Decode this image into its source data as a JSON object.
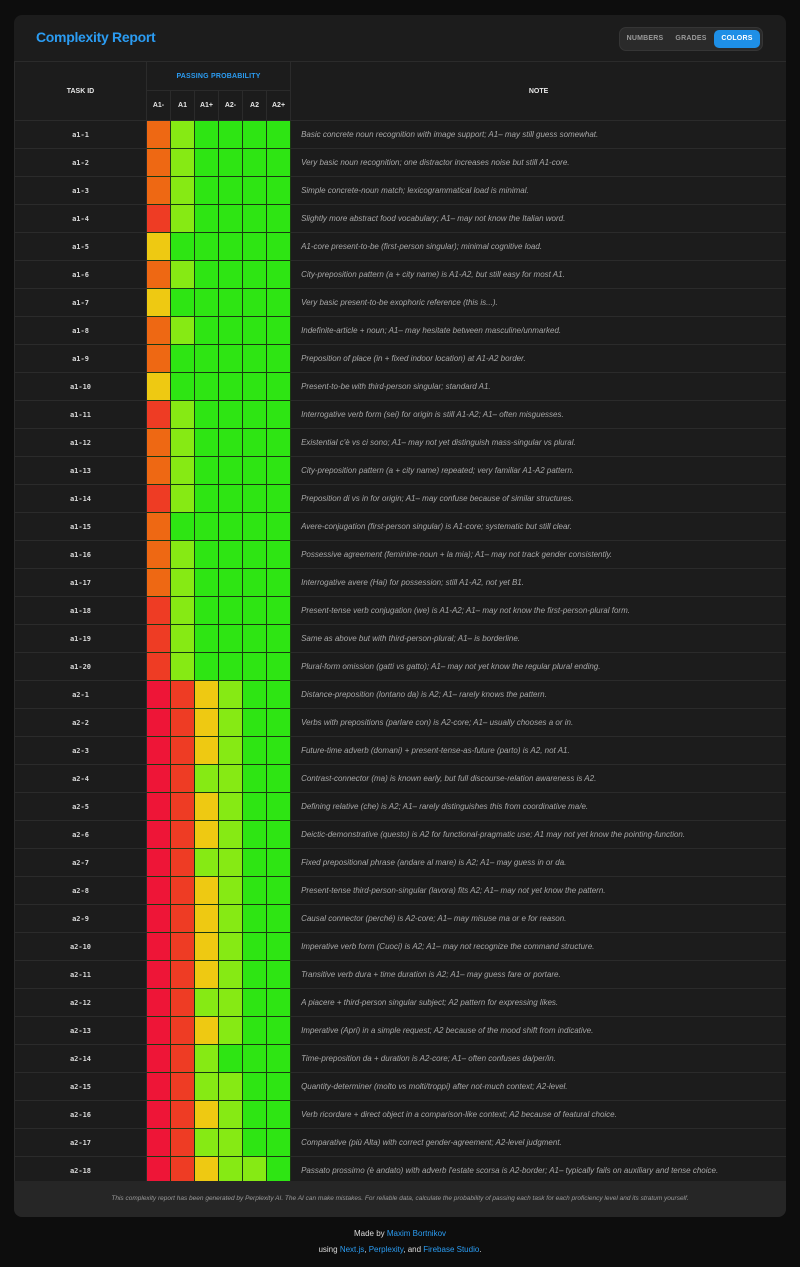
{
  "header": {
    "title": "Complexity Report",
    "view_options": [
      "NUMBERS",
      "GRADES",
      "COLORS"
    ],
    "active_view": "COLORS"
  },
  "table": {
    "task_id_header": "TASK ID",
    "group_header": "PASSING PROBABILITY",
    "levels": [
      "A1-",
      "A1",
      "A1+",
      "A2-",
      "A2",
      "A2+"
    ],
    "note_header": "NOTE"
  },
  "palette": {
    "G": "#2ee513",
    "L": "#86ea14",
    "Y": "#eec912",
    "O": "#ee6813",
    "R": "#ee3c24",
    "P": "#ee1537"
  },
  "rows": [
    {
      "id": "a1-1",
      "colors": "OLGGGG",
      "note": "Basic concrete noun recognition with image support; A1– may still guess somewhat."
    },
    {
      "id": "a1-2",
      "colors": "OLGGGG",
      "note": "Very basic noun recognition; one distractor increases noise but still A1-core."
    },
    {
      "id": "a1-3",
      "colors": "OLGGGG",
      "note": "Simple concrete-noun match; lexicogrammatical load is minimal."
    },
    {
      "id": "a1-4",
      "colors": "RLGGGG",
      "note": "Slightly more abstract food vocabulary; A1– may not know the Italian word."
    },
    {
      "id": "a1-5",
      "colors": "YGGGGG",
      "note": "A1-core present-to-be (first-person singular); minimal cognitive load."
    },
    {
      "id": "a1-6",
      "colors": "OLGGGG",
      "note": "City-preposition pattern (a + city name) is A1-A2, but still easy for most A1."
    },
    {
      "id": "a1-7",
      "colors": "YGGGGG",
      "note": "Very basic present-to-be exophoric reference (this is...)."
    },
    {
      "id": "a1-8",
      "colors": "OLGGGG",
      "note": "Indefinite-article + noun; A1– may hesitate between masculine/unmarked."
    },
    {
      "id": "a1-9",
      "colors": "OGGGGG",
      "note": "Preposition of place (in + fixed indoor location) at A1-A2 border."
    },
    {
      "id": "a1-10",
      "colors": "YGGGGG",
      "note": "Present-to-be with third-person singular; standard A1."
    },
    {
      "id": "a1-11",
      "colors": "RLGGGG",
      "note": "Interrogative verb form (sei) for origin is still A1-A2; A1– often misguesses."
    },
    {
      "id": "a1-12",
      "colors": "OLGGGG",
      "note": "Existential c'è vs ci sono; A1– may not yet distinguish mass-singular vs plural."
    },
    {
      "id": "a1-13",
      "colors": "OLGGGG",
      "note": "City-preposition pattern (a + city name) repeated; very familiar A1-A2 pattern."
    },
    {
      "id": "a1-14",
      "colors": "RLGGGG",
      "note": "Preposition di vs in for origin; A1– may confuse because of similar structures."
    },
    {
      "id": "a1-15",
      "colors": "OGGGGG",
      "note": "Avere-conjugation (first-person singular) is A1-core; systematic but still clear."
    },
    {
      "id": "a1-16",
      "colors": "OLGGGG",
      "note": "Possessive agreement (feminine-noun + la mia); A1– may not track gender consistently."
    },
    {
      "id": "a1-17",
      "colors": "OLGGGG",
      "note": "Interrogative avere (Hai) for possession; still A1-A2, not yet B1."
    },
    {
      "id": "a1-18",
      "colors": "RLGGGG",
      "note": "Present-tense verb conjugation (we) is A1-A2; A1– may not know the first-person-plural form."
    },
    {
      "id": "a1-19",
      "colors": "RLGGGG",
      "note": "Same as above but with third-person-plural; A1– is borderline."
    },
    {
      "id": "a1-20",
      "colors": "RLGGGG",
      "note": "Plural-form omission (gatti vs gatto); A1– may not yet know the regular plural ending."
    },
    {
      "id": "a2-1",
      "colors": "PRYLGG",
      "note": "Distance-preposition (lontano da) is A2; A1– rarely knows the pattern."
    },
    {
      "id": "a2-2",
      "colors": "PRYLGG",
      "note": "Verbs with prepositions (parlare con) is A2-core; A1– usually chooses a or in."
    },
    {
      "id": "a2-3",
      "colors": "PRYLGG",
      "note": "Future-time adverb (domani) + present-tense-as-future (parto) is A2, not A1."
    },
    {
      "id": "a2-4",
      "colors": "PRLLGG",
      "note": "Contrast-connector (ma) is known early, but full discourse-relation awareness is A2."
    },
    {
      "id": "a2-5",
      "colors": "PRYLGG",
      "note": "Defining relative (che) is A2; A1– rarely distinguishes this from coordinative ma/e."
    },
    {
      "id": "a2-6",
      "colors": "PRYLGG",
      "note": "Deictic-demonstrative (questo) is A2 for functional-pragmatic use; A1 may not yet know the pointing-function."
    },
    {
      "id": "a2-7",
      "colors": "PRLLGG",
      "note": "Fixed prepositional phrase (andare al mare) is A2; A1– may guess in or da."
    },
    {
      "id": "a2-8",
      "colors": "PRYLGG",
      "note": "Present-tense third-person-singular (lavora) fits A2; A1– may not yet know the pattern."
    },
    {
      "id": "a2-9",
      "colors": "PRYLGG",
      "note": "Causal connector (perché) is A2-core; A1– may misuse ma or e for reason."
    },
    {
      "id": "a2-10",
      "colors": "PRYLGG",
      "note": "Imperative verb form (Cuoci) is A2; A1– may not recognize the command structure."
    },
    {
      "id": "a2-11",
      "colors": "PRYLGG",
      "note": "Transitive verb dura + time duration is A2; A1– may guess fare or portare."
    },
    {
      "id": "a2-12",
      "colors": "PRLLGG",
      "note": "A piacere + third-person singular subject; A2 pattern for expressing likes."
    },
    {
      "id": "a2-13",
      "colors": "PRYLGG",
      "note": "Imperative (Apri) in a simple request; A2 because of the mood shift from indicative."
    },
    {
      "id": "a2-14",
      "colors": "PRLGGG",
      "note": "Time-preposition da + duration is A2-core; A1– often confuses da/per/in."
    },
    {
      "id": "a2-15",
      "colors": "PRLLGG",
      "note": "Quantity-determiner (molto vs molti/troppi) after not-much context; A2-level."
    },
    {
      "id": "a2-16",
      "colors": "PRYLGG",
      "note": "Verb ricordare + direct object in a comparison-like context; A2 because of featural choice."
    },
    {
      "id": "a2-17",
      "colors": "PRLLGG",
      "note": "Comparative (più Alta) with correct gender-agreement; A2-level judgment."
    },
    {
      "id": "a2-18",
      "colors": "PRYLLG",
      "note": "Passato prossimo (è andato) with adverb l'estate scorsa is A2-border; A1– typically fails on auxiliary and tense choice."
    }
  ],
  "disclaimer": "This complexity report has been generated by Perplexity AI. The AI can make mistakes. For reliable data, calculate the probability of passing each task for each proficiency level and its stratum yourself.",
  "footer": {
    "made_by_prefix": "Made by ",
    "author": "Maxim Bortnikov",
    "using_prefix": "using ",
    "tech1": "Next.js",
    "sep1": ", ",
    "tech2": "Perplexity",
    "sep2": ", and ",
    "tech3": "Firebase Studio",
    "suffix": "."
  }
}
